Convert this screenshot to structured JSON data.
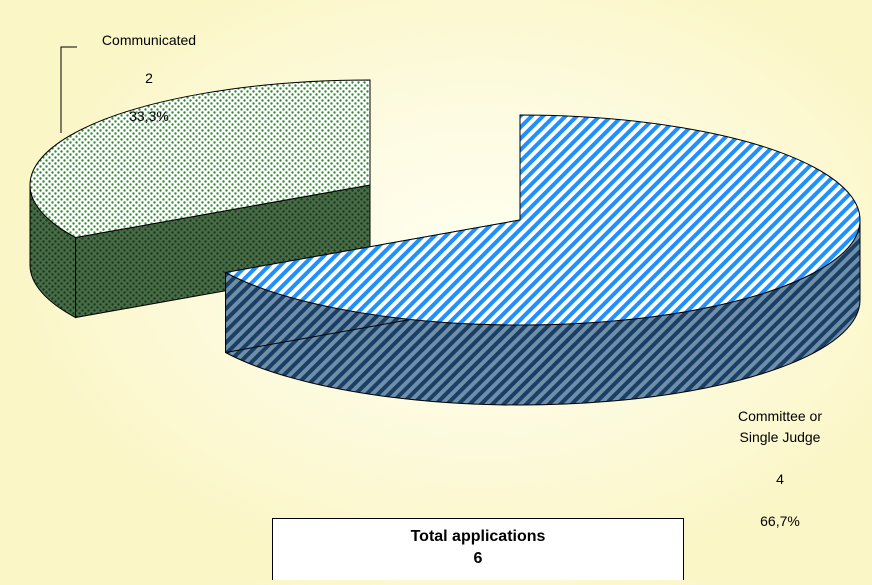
{
  "chart_data": {
    "type": "pie",
    "style": "3d-exploded",
    "categories": [
      "Communicated",
      "Committee or Single Judge"
    ],
    "values": [
      2,
      4
    ],
    "percent_labels": [
      "33,3%",
      "66,7%"
    ],
    "slices": [
      {
        "label": "Communicated",
        "value": 2,
        "percent": "33,3%",
        "color": "#2e8b2e",
        "pattern": "dots"
      },
      {
        "label": "Committee or Single Judge",
        "value": 4,
        "percent": "66,7%",
        "color": "#1e90ff",
        "pattern": "diagonal-stripes"
      }
    ],
    "legend": "none"
  },
  "total": {
    "label": "Total applications",
    "value": "6"
  },
  "colors": {
    "communicated_top": "#2e8b2e",
    "communicated_side": "#1f5f1f",
    "committee_top": "#1e90ff",
    "committee_side": "#1f4f7a"
  }
}
